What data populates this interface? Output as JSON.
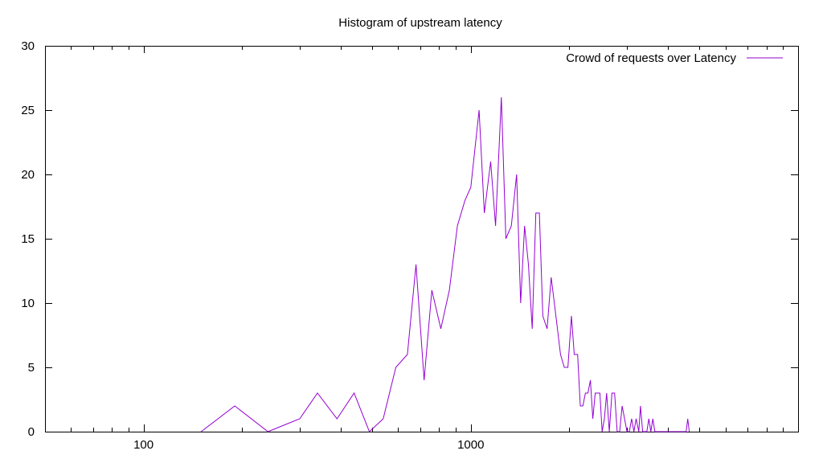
{
  "chart_data": {
    "type": "line",
    "title": "Histogram of upstream latency",
    "xlabel": "",
    "ylabel": "",
    "x_scale": "log",
    "xlim": [
      50,
      10000
    ],
    "ylim": [
      0,
      30
    ],
    "grid": false,
    "legend_position": "top-right",
    "color": "#9400d3",
    "y_ticks": [
      0,
      5,
      10,
      15,
      20,
      25,
      30
    ],
    "x_ticks": [
      {
        "value": 100,
        "label": "100"
      },
      {
        "value": 1000,
        "label": "1000"
      }
    ],
    "series": [
      {
        "name": "Crowd of requests over Latency",
        "x": [
          150,
          190,
          240,
          300,
          340,
          390,
          440,
          490,
          540,
          590,
          640,
          680,
          720,
          760,
          810,
          860,
          910,
          960,
          1000,
          1060,
          1100,
          1150,
          1190,
          1240,
          1280,
          1330,
          1380,
          1420,
          1460,
          1500,
          1540,
          1580,
          1620,
          1660,
          1710,
          1760,
          1800,
          1840,
          1880,
          1930,
          1980,
          2030,
          2070,
          2120,
          2160,
          2200,
          2240,
          2280,
          2320,
          2360,
          2400,
          2440,
          2480,
          2520,
          2560,
          2600,
          2650,
          2700,
          2750,
          2800,
          2850,
          2900,
          2950,
          3000,
          3050,
          3100,
          3150,
          3200,
          3260,
          3300,
          3350,
          3400,
          3450,
          3500,
          3550,
          3600,
          3650,
          3700,
          3780,
          3850,
          3900,
          3950,
          4000,
          4550,
          4600,
          4650
        ],
        "y": [
          0,
          2,
          0,
          1,
          3,
          1,
          3,
          0,
          1,
          5,
          6,
          13,
          4,
          11,
          8,
          11,
          16,
          18,
          19,
          25,
          17,
          21,
          16,
          26,
          15,
          16,
          20,
          10,
          16,
          13,
          8,
          17,
          17,
          9,
          8,
          12,
          10,
          8,
          6,
          5,
          5,
          9,
          6,
          6,
          2,
          2,
          3,
          3,
          4,
          1,
          3,
          3,
          3,
          0,
          1,
          3,
          0,
          3,
          3,
          0,
          0,
          2,
          1,
          0,
          0,
          1,
          0,
          1,
          0,
          2,
          0,
          0,
          0,
          1,
          0,
          1,
          0,
          0,
          0,
          0,
          0,
          0,
          0,
          0,
          1,
          0
        ]
      }
    ]
  }
}
